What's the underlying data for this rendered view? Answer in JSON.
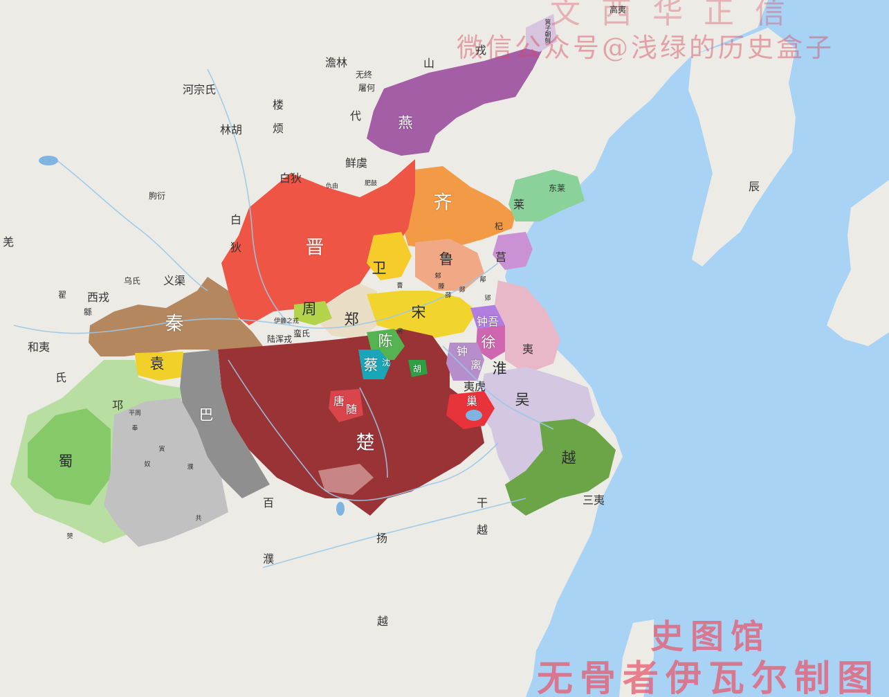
{
  "map": {
    "watermark_top": "微信公众号@浅绿的历史盒子",
    "watermark_top_partial": "文西华正信",
    "watermark_bottom_1": "史图馆",
    "watermark_bottom_2": "无骨者伊瓦尔制图",
    "colors": {
      "sea": "#a9d3f5",
      "land": "#ecebe6",
      "qin": "#b5875f",
      "jin": "#ee5545",
      "qi": "#f29a46",
      "yan": "#a45ea6",
      "chu": "#9a3335",
      "song": "#f1d52e",
      "wu": "#d3c7e1",
      "yue": "#6ca548",
      "shu": "#86c968",
      "ba": "#8f8f8f",
      "zheng": "#e9ddc6"
    },
    "states": {
      "qin": "秦",
      "jin": "晋",
      "qi": "齐",
      "yan": "燕",
      "chu": "楚",
      "song": "宋",
      "wei": "卫",
      "lu": "鲁",
      "zheng": "郑",
      "zhou": "周",
      "chen": "陈",
      "cai": "蔡",
      "wu": "吴",
      "yue": "越",
      "shu": "蜀",
      "ba": "巴",
      "lai": "莱",
      "ju": "莒",
      "xu": "徐",
      "yuan": "袁",
      "tang": "唐",
      "sui": "随",
      "hu": "胡",
      "chao": "巢",
      "qi_small": "杞",
      "zhongwu": "钟吾",
      "zhongli_a": "钟",
      "zhongli_b": "离",
      "huaiyi": "淮",
      "shen": "沈",
      "fang": "房",
      "cao": "曹",
      "teng": "滕",
      "zhu": "邾",
      "xiao_zhu": "郳",
      "tan": "郯",
      "xue": "薛",
      "wuyu": "鄅",
      "yi_hu": "夷虎",
      "man_shi": "蛮氏",
      "lu_hun_rong": "陆浑戎",
      "yi_luo_rong": "伊雒之戎",
      "dong_lai": "东莱",
      "fei_gu": "肥鼓",
      "xian_yu": "鲜虞",
      "dai_nan": "代",
      "chou_you": "仇由",
      "jizi_chaoxian": "箕子朝鲜"
    },
    "peoples": {
      "gaoyi": "高夷",
      "shan_rong_1": "山",
      "shan_rong_2": "戎",
      "tu_lin": "澹林",
      "wu_zhong": "无终",
      "tu_he": "屠何",
      "dai": "代",
      "lou": "楼",
      "fan": "烦",
      "lin_hu": "林胡",
      "he_zong": "河宗氏",
      "bai_di_1": "白狄",
      "bai_di_2": "白",
      "bai_di_3": "狄",
      "xian_yu": "鲜虞",
      "qu_yan": "朐衍",
      "qiang": "羌",
      "wu_shi": "乌氏",
      "yi_qu": "义渠",
      "di": "翟",
      "xi_rong": "西戎",
      "mian": "緜",
      "he_yi": "和夷",
      "shi": "氏",
      "kong": "邛",
      "ping_zhou": "平周",
      "feng": "奉",
      "yin": "寅",
      "nu": "奴",
      "pu": "濮",
      "gong": "共",
      "bai": "百",
      "yang": "扬",
      "pu2": "濮",
      "yue_s": "越",
      "gan": "干",
      "yue2": "越",
      "san_yi": "三夷",
      "dong_yi": "夷",
      "chen_han": "辰",
      "bo": "僰",
      "yi_s": "夷"
    }
  }
}
